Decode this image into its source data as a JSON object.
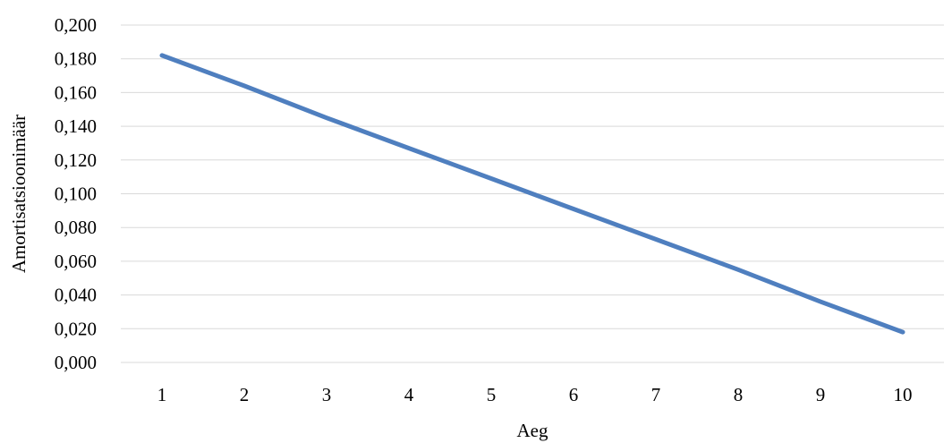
{
  "chart_data": {
    "type": "line",
    "title": "",
    "xlabel": "Aeg",
    "ylabel": "Amortisatsioonimäär",
    "categories": [
      "1",
      "2",
      "3",
      "4",
      "5",
      "6",
      "7",
      "8",
      "9",
      "10"
    ],
    "series": [
      {
        "values": [
          0.182,
          0.164,
          0.145,
          0.127,
          0.109,
          0.091,
          0.073,
          0.055,
          0.036,
          0.018
        ],
        "color": "#4f7fbf"
      }
    ],
    "ylim": [
      0,
      0.2
    ],
    "yticks": [
      "0,000",
      "0,020",
      "0,040",
      "0,060",
      "0,080",
      "0,100",
      "0,120",
      "0,140",
      "0,160",
      "0,180",
      "0,200"
    ],
    "grid": true,
    "legend": "none"
  }
}
